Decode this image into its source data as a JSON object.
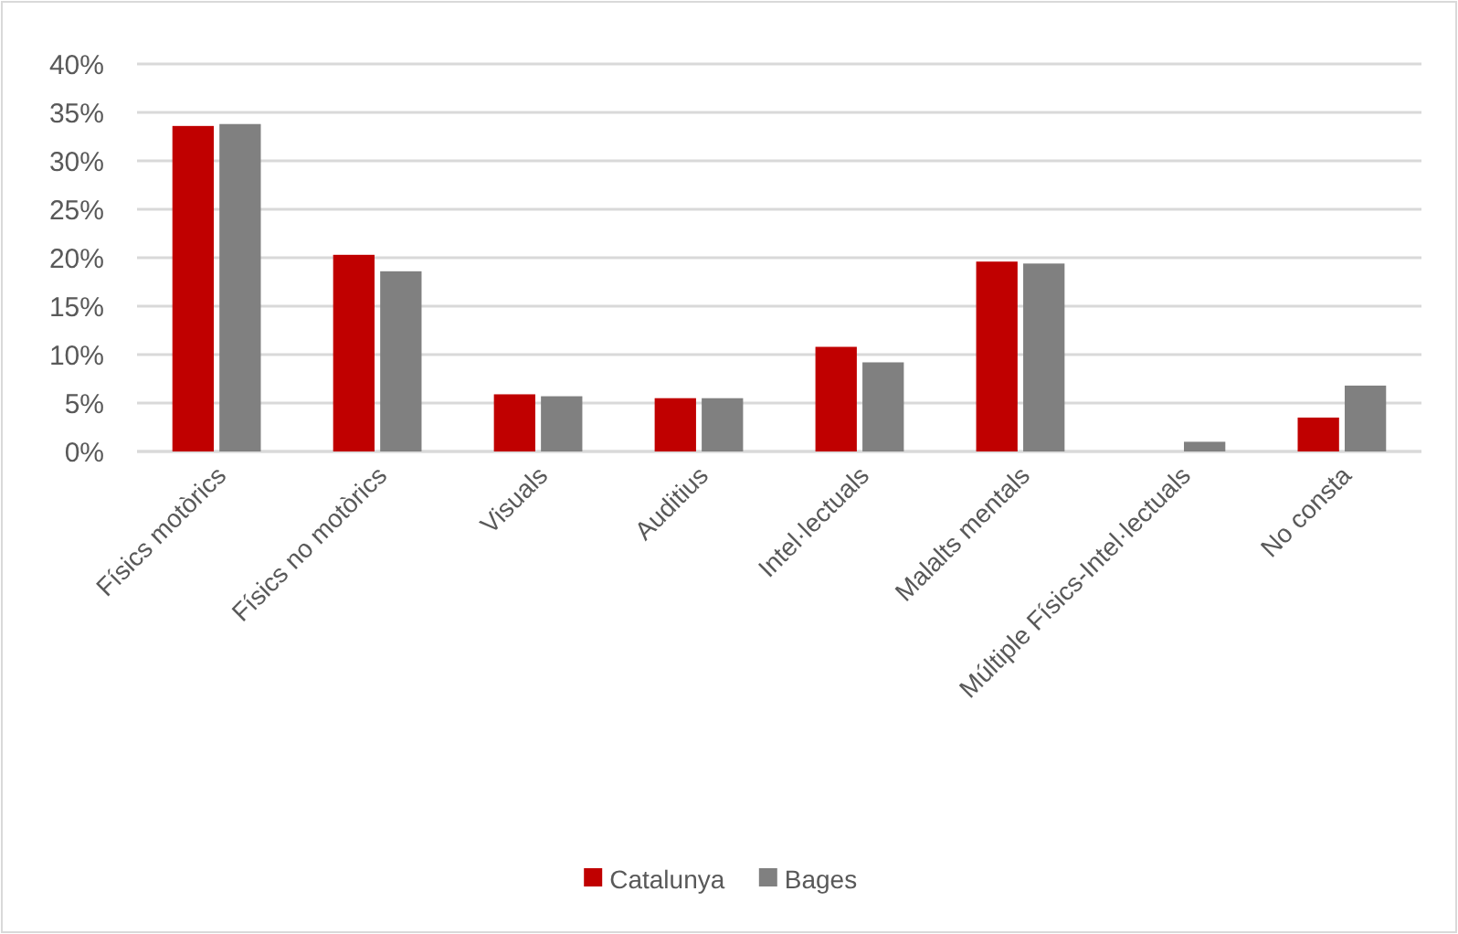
{
  "chart_data": {
    "type": "bar",
    "categories": [
      "Físics motòrics",
      "Físics no motòrics",
      "Visuals",
      "Auditius",
      "Intel·lectuals",
      "Malalts mentals",
      "Múltiple Físics-Intel·lectuals",
      "No consta"
    ],
    "series": [
      {
        "name": "Catalunya",
        "color": "#c00000",
        "values": [
          33.6,
          20.3,
          5.9,
          5.5,
          10.8,
          19.6,
          0,
          3.5
        ]
      },
      {
        "name": "Bages",
        "color": "#808080",
        "values": [
          33.8,
          18.6,
          5.7,
          5.5,
          9.2,
          19.4,
          1.0,
          6.8
        ]
      }
    ],
    "ylim": [
      0,
      40
    ],
    "yticks": [
      {
        "value": 0,
        "label": "0%"
      },
      {
        "value": 5,
        "label": "5%"
      },
      {
        "value": 10,
        "label": "10%"
      },
      {
        "value": 15,
        "label": "15%"
      },
      {
        "value": 20,
        "label": "20%"
      },
      {
        "value": 25,
        "label": "25%"
      },
      {
        "value": 30,
        "label": "30%"
      },
      {
        "value": 35,
        "label": "35%"
      },
      {
        "value": 40,
        "label": "40%"
      }
    ],
    "grid": "y",
    "legend": "bottom"
  }
}
